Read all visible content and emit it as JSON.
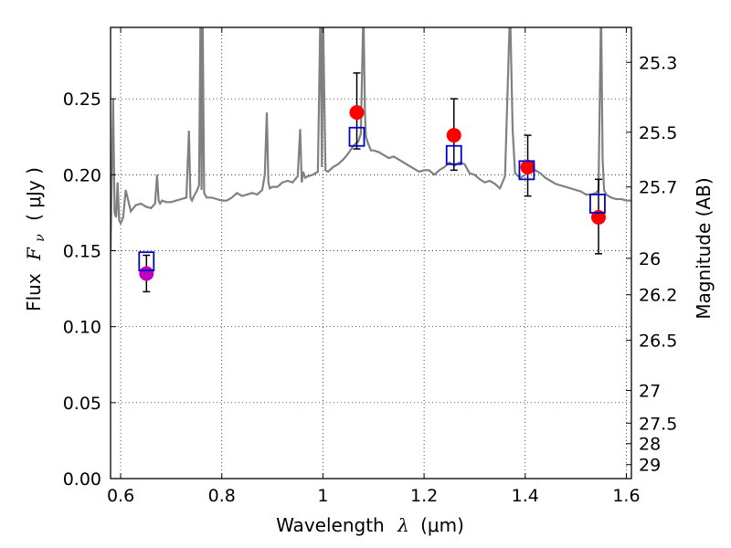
{
  "chart_data": {
    "type": "scatter",
    "xlabel_prefix": "Wavelength",
    "xlabel_symbol": "λ",
    "xlabel_unit": "(μm)",
    "ylabel_prefix": "Flux",
    "ylabel_symbol": "F",
    "ylabel_symbol_sub": "ν",
    "ylabel_unit": "( μJy )",
    "y2label": "Magnitude (AB)",
    "xlim": [
      0.58,
      1.61
    ],
    "ylim": [
      0.0,
      0.297
    ],
    "grid": true,
    "x_ticks": [
      0.6,
      0.8,
      1.0,
      1.2,
      1.4,
      1.6
    ],
    "x_tick_labels": [
      "0.6",
      "0.8",
      "1",
      "1.2",
      "1.4",
      "1.6"
    ],
    "y_ticks": [
      0.0,
      0.05,
      0.1,
      0.15,
      0.2,
      0.25
    ],
    "y_tick_labels": [
      "0.00",
      "0.05",
      "0.10",
      "0.15",
      "0.20",
      "0.25"
    ],
    "y2_tick_labels": [
      "25.3",
      "25.5",
      "25.7",
      "26",
      "26.2",
      "26.5",
      "27",
      "27.5",
      "28",
      "29"
    ],
    "y2_tick_flux": [
      0.274,
      0.228,
      0.192,
      0.145,
      0.121,
      0.091,
      0.058,
      0.0365,
      0.023,
      0.0092
    ],
    "colors": {
      "sed": "#808080",
      "photometry": "#ff0000",
      "upper_point": "#bf00bf",
      "model_box": "#0000cc",
      "errorbar": "#000000"
    },
    "series": [
      {
        "kind": "line",
        "x": [
          0.58,
          0.585,
          0.588,
          0.591,
          0.594,
          0.597,
          0.6,
          0.605,
          0.61,
          0.62,
          0.63,
          0.64,
          0.65,
          0.66,
          0.668,
          0.672,
          0.675,
          0.678,
          0.682,
          0.69,
          0.7,
          0.71,
          0.72,
          0.73,
          0.735,
          0.738,
          0.741,
          0.745,
          0.75,
          0.755,
          0.758,
          0.76,
          0.762,
          0.765,
          0.77,
          0.78,
          0.79,
          0.8,
          0.81,
          0.82,
          0.83,
          0.84,
          0.85,
          0.86,
          0.87,
          0.88,
          0.885,
          0.889,
          0.892,
          0.895,
          0.9,
          0.91,
          0.92,
          0.93,
          0.94,
          0.95,
          0.955,
          0.958,
          0.961,
          0.965,
          0.97,
          0.98,
          0.99,
          0.995,
          0.998,
          1.0,
          1.005,
          1.01,
          1.02,
          1.03,
          1.04,
          1.05,
          1.06,
          1.07,
          1.075,
          1.08,
          1.083,
          1.085,
          1.09,
          1.095,
          1.1,
          1.11,
          1.12,
          1.13,
          1.14,
          1.15,
          1.16,
          1.17,
          1.18,
          1.19,
          1.2,
          1.21,
          1.22,
          1.23,
          1.24,
          1.25,
          1.26,
          1.27,
          1.28,
          1.29,
          1.3,
          1.31,
          1.32,
          1.33,
          1.34,
          1.35,
          1.36,
          1.37,
          1.375,
          1.38,
          1.39,
          1.4,
          1.41,
          1.42,
          1.43,
          1.44,
          1.45,
          1.46,
          1.47,
          1.48,
          1.49,
          1.5,
          1.51,
          1.52,
          1.53,
          1.54,
          1.545,
          1.55,
          1.553,
          1.556,
          1.56,
          1.57,
          1.58,
          1.59,
          1.6,
          1.61
        ],
        "y": [
          0.15,
          0.25,
          0.175,
          0.172,
          0.195,
          0.17,
          0.168,
          0.172,
          0.19,
          0.176,
          0.18,
          0.181,
          0.179,
          0.178,
          0.181,
          0.2,
          0.183,
          0.181,
          0.183,
          0.182,
          0.182,
          0.183,
          0.184,
          0.185,
          0.229,
          0.185,
          0.183,
          0.186,
          0.189,
          0.193,
          0.31,
          0.19,
          0.31,
          0.188,
          0.185,
          0.185,
          0.184,
          0.183,
          0.183,
          0.185,
          0.188,
          0.186,
          0.187,
          0.188,
          0.187,
          0.19,
          0.2,
          0.241,
          0.195,
          0.191,
          0.192,
          0.192,
          0.195,
          0.196,
          0.195,
          0.199,
          0.23,
          0.195,
          0.202,
          0.198,
          0.199,
          0.2,
          0.202,
          0.31,
          0.205,
          0.31,
          0.203,
          0.202,
          0.205,
          0.207,
          0.21,
          0.214,
          0.219,
          0.222,
          0.227,
          0.31,
          0.24,
          0.225,
          0.22,
          0.216,
          0.216,
          0.215,
          0.213,
          0.211,
          0.212,
          0.21,
          0.208,
          0.206,
          0.204,
          0.202,
          0.203,
          0.203,
          0.2,
          0.203,
          0.205,
          0.208,
          0.206,
          0.208,
          0.207,
          0.201,
          0.2,
          0.197,
          0.195,
          0.196,
          0.194,
          0.191,
          0.199,
          0.31,
          0.23,
          0.201,
          0.198,
          0.2,
          0.205,
          0.203,
          0.201,
          0.198,
          0.196,
          0.194,
          0.193,
          0.192,
          0.191,
          0.19,
          0.189,
          0.187,
          0.187,
          0.188,
          0.19,
          0.31,
          0.21,
          0.19,
          0.187,
          0.185,
          0.184,
          0.184,
          0.183,
          0.183
        ]
      },
      {
        "kind": "photometry",
        "x": [
          1.067,
          1.259,
          1.405,
          1.545
        ],
        "y": [
          0.241,
          0.226,
          0.205,
          0.172
        ],
        "yerr_low": [
          0.024,
          0.023,
          0.019,
          0.024
        ],
        "yerr_high": [
          0.026,
          0.024,
          0.021,
          0.025
        ]
      },
      {
        "kind": "photometry-magenta",
        "x": [
          0.651
        ],
        "y": [
          0.135
        ],
        "yerr_low": [
          0.012
        ],
        "yerr_high": [
          0.012
        ]
      },
      {
        "kind": "model-boxes",
        "x": [
          0.651,
          1.067,
          1.259,
          1.403,
          1.543
        ],
        "y": [
          0.143,
          0.225,
          0.213,
          0.203,
          0.181
        ]
      }
    ]
  }
}
